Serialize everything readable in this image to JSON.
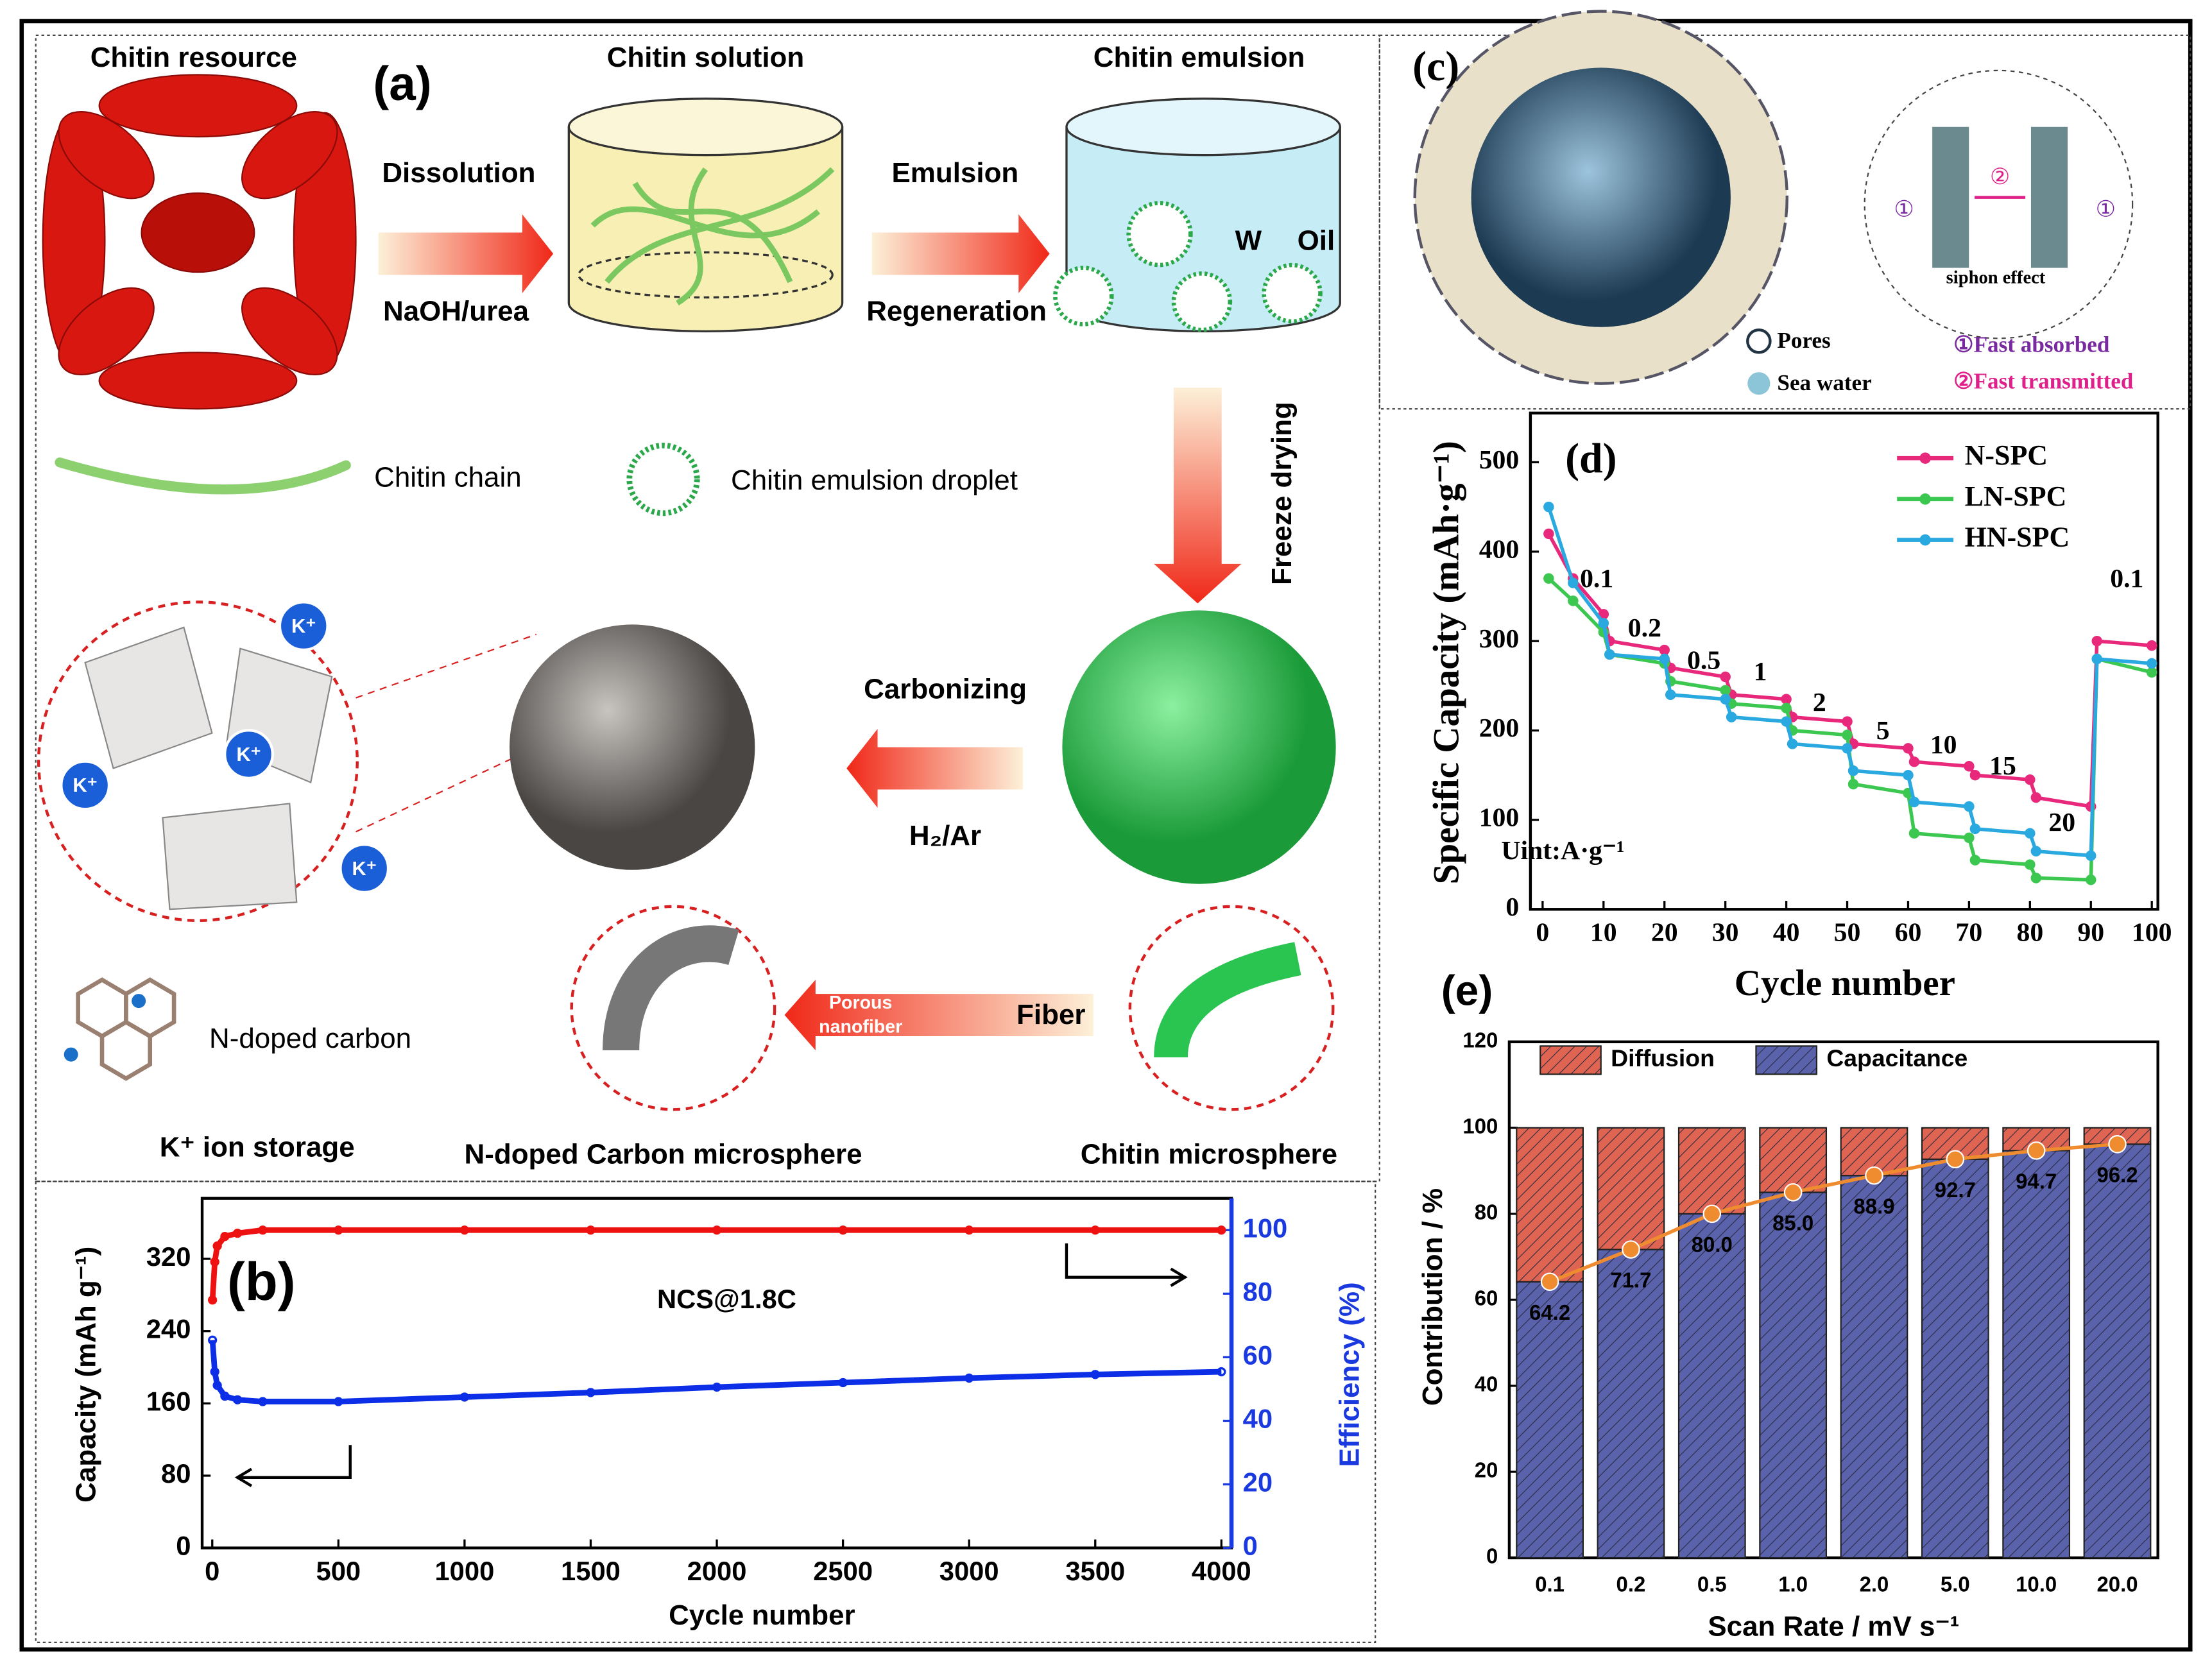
{
  "panel_a": {
    "label": "(a)",
    "chitin_resource": "Chitin resource",
    "chitin_solution": "Chitin solution",
    "chitin_emulsion": "Chitin emulsion",
    "dissolution": "Dissolution",
    "naoh_urea": "NaOH/urea",
    "emulsion": "Emulsion",
    "regeneration": "Regeneration",
    "w": "W",
    "oil": "Oil",
    "freeze_drying": "Freeze drying",
    "chitin_chain": "Chitin chain",
    "droplet": "Chitin emulsion droplet",
    "carbonizing": "Carbonizing",
    "h2_ar": "H₂/Ar",
    "porous": "Porous",
    "nanofiber": "nanofiber",
    "fiber": "Fiber",
    "k_ion": "K⁺",
    "n_doped_carbon": "N-doped carbon",
    "k_storage": "K⁺ ion storage",
    "carbon_microsphere": "N-doped Carbon microsphere",
    "chitin_microsphere": "Chitin microsphere"
  },
  "panel_c": {
    "label": "(c)",
    "siphon": "siphon effect",
    "one": "①",
    "two": "②",
    "pores": "Pores",
    "sea_water": "Sea water",
    "fast_absorbed": "①Fast absorbed",
    "fast_transmitted": "②Fast transmitted"
  },
  "chart_data": [
    {
      "type": "line",
      "label": "(b)",
      "annotation": "NCS@1.8C",
      "x_label": "Cycle number",
      "y_label": "Capacity (mAh g⁻¹)",
      "y2_label": "Efficiency (%)",
      "x": [
        1,
        10,
        20,
        50,
        100,
        200,
        500,
        1000,
        1500,
        2000,
        2500,
        3000,
        3500,
        4000
      ],
      "series": [
        {
          "color": "#0b2ee6",
          "values": [
            230,
            195,
            180,
            168,
            164,
            162,
            162,
            167,
            172,
            178,
            183,
            188,
            192,
            195
          ]
        },
        {
          "color": "#ee1111",
          "axis": "y2",
          "values": [
            78,
            90,
            95,
            98,
            99,
            100,
            100,
            100,
            100,
            100,
            100,
            100,
            100,
            100
          ]
        }
      ],
      "xlim": [
        -40,
        4040
      ],
      "ylim": [
        0,
        387
      ],
      "y2lim": [
        0,
        110
      ],
      "xticks": [
        0,
        500,
        1000,
        1500,
        2000,
        2500,
        3000,
        3500,
        4000
      ],
      "yticks": [
        0,
        80,
        160,
        240,
        320
      ],
      "y2ticks": [
        0,
        20,
        40,
        60,
        80,
        100
      ],
      "y2_color": "#1a3ae0"
    },
    {
      "type": "line",
      "label": "(d)",
      "x_label": "Cycle number",
      "y_label": "Specific Capacity (mAh·g⁻¹)",
      "legend": "upper right",
      "x": [
        1,
        5,
        10,
        11,
        20,
        21,
        30,
        31,
        40,
        41,
        50,
        51,
        60,
        61,
        70,
        71,
        80,
        81,
        90,
        91,
        100
      ],
      "series": [
        {
          "name": "N-SPC",
          "color": "#e8287a",
          "values": [
            420,
            370,
            330,
            300,
            290,
            270,
            260,
            240,
            235,
            215,
            210,
            185,
            180,
            165,
            160,
            150,
            145,
            125,
            115,
            300,
            295
          ]
        },
        {
          "name": "LN-SPC",
          "color": "#3cc850",
          "values": [
            370,
            345,
            310,
            285,
            275,
            255,
            245,
            230,
            225,
            200,
            195,
            140,
            130,
            85,
            80,
            55,
            50,
            35,
            33,
            280,
            265
          ]
        },
        {
          "name": "HN-SPC",
          "color": "#2aa8e0",
          "values": [
            450,
            365,
            320,
            285,
            280,
            240,
            235,
            215,
            210,
            185,
            180,
            155,
            150,
            120,
            115,
            90,
            85,
            65,
            60,
            280,
            275
          ]
        }
      ],
      "annotations": [
        "0.1",
        "0.2",
        "0.5",
        "1",
        "2",
        "5",
        "10",
        "15",
        "20",
        "0.1",
        "Uint:A·g⁻¹"
      ],
      "xlim": [
        -2,
        101
      ],
      "ylim": [
        0,
        555
      ],
      "xticks": [
        0,
        10,
        20,
        30,
        40,
        50,
        60,
        70,
        80,
        90,
        100
      ],
      "yticks": [
        0,
        100,
        200,
        300,
        400,
        500
      ]
    },
    {
      "type": "bar",
      "label": "(e)",
      "stacked": true,
      "x_label": "Scan Rate / mV s⁻¹",
      "y_label": "Contribution / %",
      "legend": "upper left",
      "categories": [
        "0.1",
        "0.2",
        "0.5",
        "1.0",
        "2.0",
        "5.0",
        "10.0",
        "20.0"
      ],
      "series": [
        {
          "name": "Diffusion",
          "color": "#e06452",
          "values": [
            35.8,
            28.3,
            20.0,
            15.0,
            11.1,
            7.3,
            5.3,
            3.8
          ]
        },
        {
          "name": "Capacitance",
          "color": "#5a62ac",
          "values": [
            64.2,
            71.7,
            80.0,
            85.0,
            88.9,
            92.7,
            94.7,
            96.2
          ],
          "value_labels": [
            "64.2",
            "71.7",
            "80.0",
            "85.0",
            "88.9",
            "92.7",
            "94.7",
            "96.2"
          ]
        }
      ],
      "line_color": "#f08c30",
      "ylim": [
        0,
        120
      ],
      "yticks": [
        0,
        20,
        40,
        60,
        80,
        100,
        120
      ]
    }
  ]
}
